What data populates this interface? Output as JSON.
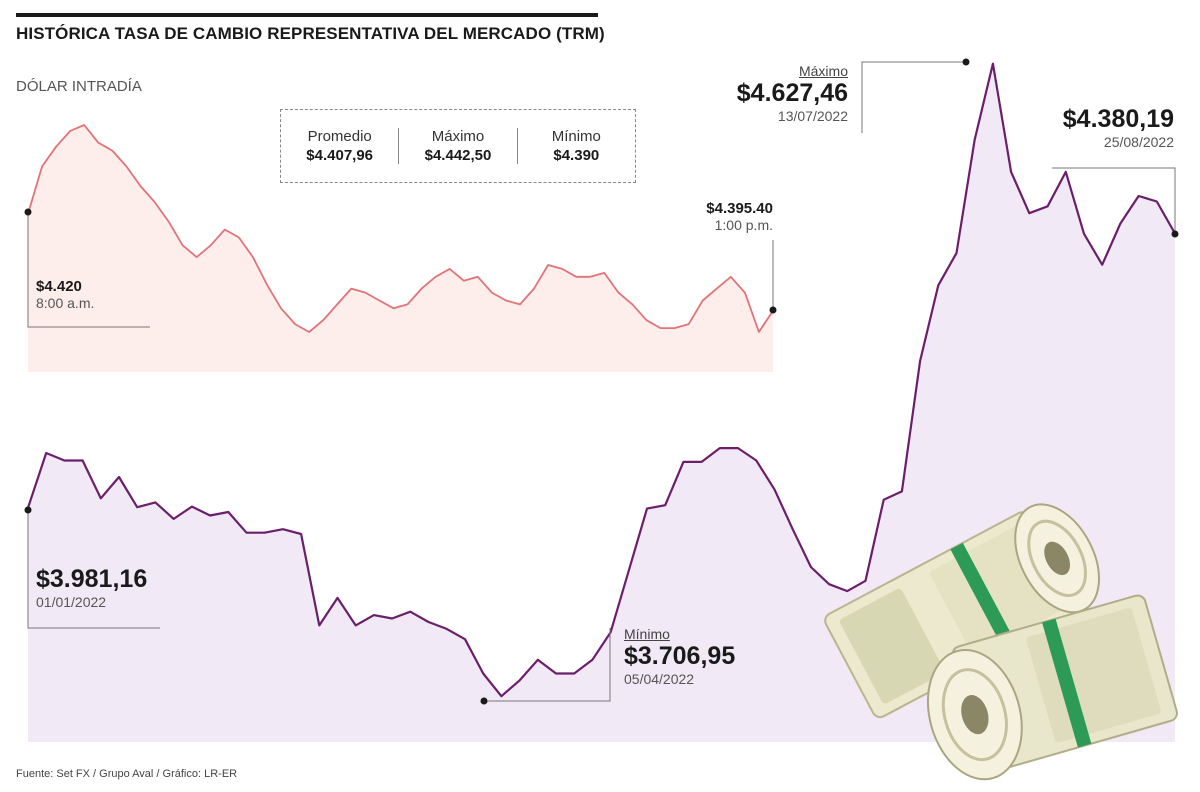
{
  "header": {
    "title": "HISTÓRICA TASA DE CAMBIO REPRESENTATIVA DEL MERCADO (TRM)",
    "intraday_label": "DÓLAR INTRADÍA"
  },
  "stats": {
    "avg_label": "Promedio",
    "avg_value": "$4.407,96",
    "max_label": "Máximo",
    "max_value": "$4.442,50",
    "min_label": "Mínimo",
    "min_value": "$4.390"
  },
  "intraday_annotations": {
    "open_value": "$4.420",
    "open_time": "8:00 a.m.",
    "close_value": "$4.395.40",
    "close_time": "1:00 p.m."
  },
  "trm_annotations": {
    "start_value": "$3.981,16",
    "start_date": "01/01/2022",
    "min_label": "Mínimo",
    "min_value": "$3.706,95",
    "min_date": "05/04/2022",
    "max_label": "Máximo",
    "max_value": "$4.627,46",
    "max_date": "13/07/2022",
    "end_value": "$4.380,19",
    "end_date": "25/08/2022"
  },
  "footer": {
    "source": "Fuente: Set FX / Grupo Aval / Gráfico: LR-ER"
  },
  "colors": {
    "trm_line": "#6b1f6b",
    "trm_fill": "#f1e9f5",
    "intraday_line": "#e07478",
    "intraday_fill": "#fdeeec",
    "text": "#1a1a1a",
    "muted": "#555555"
  },
  "chart_data": [
    {
      "type": "line",
      "title": "DÓLAR INTRADÍA",
      "x_start": "8:00 a.m.",
      "x_end": "1:00 p.m.",
      "ylim": [
        4390,
        4442.5
      ],
      "series": [
        {
          "values": [
            4420,
            4432,
            4437,
            4441,
            4442.5,
            4438,
            4436,
            4432,
            4427,
            4423,
            4418,
            4412,
            4409,
            4412,
            4416,
            4414,
            4409,
            4402,
            4396,
            4392,
            4390,
            4393,
            4397,
            4401,
            4400,
            4398,
            4396,
            4397,
            4401,
            4404,
            4406,
            4403,
            4404,
            4400,
            4398,
            4397,
            4401,
            4407,
            4406,
            4404,
            4404,
            4405,
            4400,
            4397,
            4393,
            4391,
            4391,
            4392,
            4398,
            4401,
            4404,
            4400,
            4390,
            4395.4
          ]
        }
      ]
    },
    {
      "type": "line",
      "title": "HISTÓRICA TASA DE CAMBIO REPRESENTATIVA DEL MERCADO (TRM)",
      "x_start": "01/01/2022",
      "x_end": "25/08/2022",
      "ylim": [
        3700,
        4630
      ],
      "series": [
        {
          "values": [
            3981.16,
            4061,
            4050,
            4050,
            3995,
            4026,
            3982,
            3989,
            3965,
            3983,
            3970,
            3975,
            3945,
            3945,
            3950,
            3943,
            3810,
            3850,
            3810,
            3825,
            3820,
            3830,
            3815,
            3805,
            3790,
            3740,
            3706.95,
            3730,
            3760,
            3740,
            3740,
            3760,
            3800,
            3890,
            3980,
            3985,
            4048,
            4048,
            4068,
            4068,
            4050,
            4008,
            3950,
            3895,
            3870,
            3860,
            3875,
            3993,
            4005,
            4195,
            4305,
            4352,
            4517,
            4627.46,
            4470,
            4410,
            4420,
            4470,
            4380,
            4335,
            4395,
            4435,
            4427,
            4380.19
          ]
        }
      ]
    }
  ]
}
